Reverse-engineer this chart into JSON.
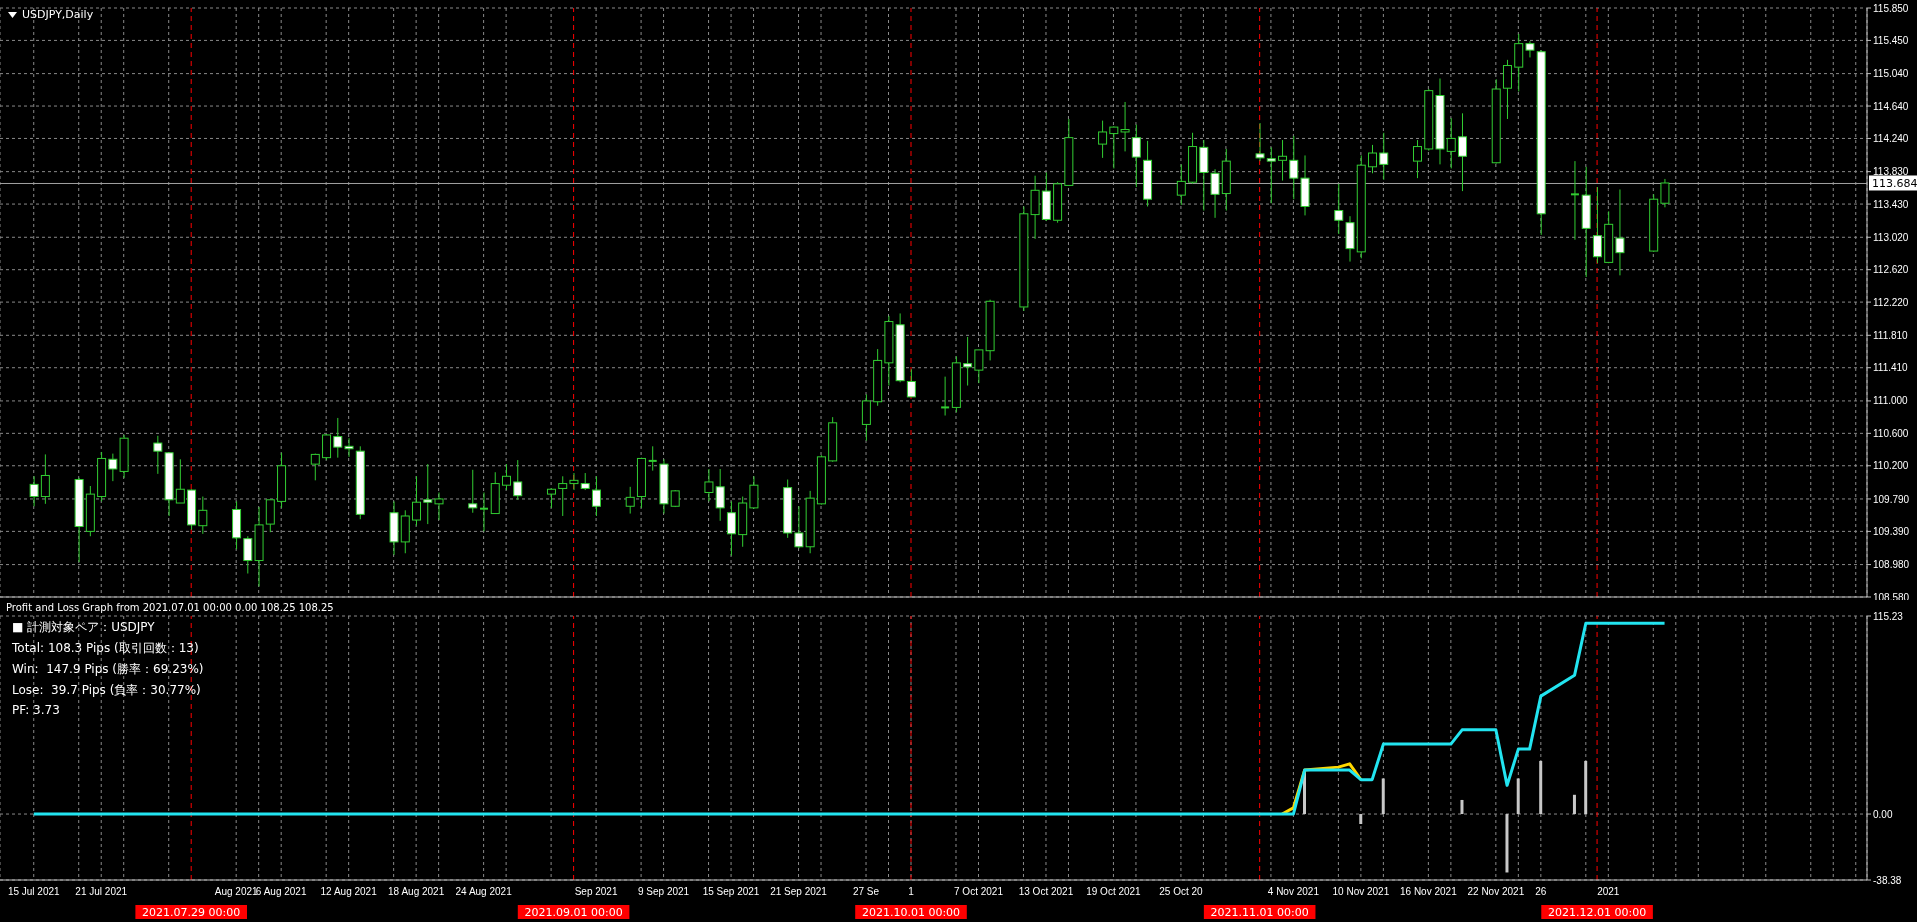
{
  "chart_data": [
    {
      "type": "candlestick",
      "title": "USDJPY,Daily",
      "color": "#32cd32",
      "x": [
        "2021-07-15",
        "2021-07-16",
        "2021-07-19",
        "2021-07-20",
        "2021-07-21",
        "2021-07-22",
        "2021-07-23",
        "2021-07-26",
        "2021-07-27",
        "2021-07-28",
        "2021-07-29",
        "2021-07-30",
        "2021-08-02",
        "2021-08-03",
        "2021-08-04",
        "2021-08-05",
        "2021-08-06",
        "2021-08-09",
        "2021-08-10",
        "2021-08-11",
        "2021-08-12",
        "2021-08-13",
        "2021-08-16",
        "2021-08-17",
        "2021-08-18",
        "2021-08-19",
        "2021-08-20",
        "2021-08-23",
        "2021-08-24",
        "2021-08-25",
        "2021-08-26",
        "2021-08-27",
        "2021-08-30",
        "2021-08-31",
        "2021-09-01",
        "2021-09-02",
        "2021-09-03",
        "2021-09-06",
        "2021-09-07",
        "2021-09-08",
        "2021-09-09",
        "2021-09-10",
        "2021-09-13",
        "2021-09-14",
        "2021-09-15",
        "2021-09-16",
        "2021-09-17",
        "2021-09-20",
        "2021-09-21",
        "2021-09-22",
        "2021-09-23",
        "2021-09-24",
        "2021-09-27",
        "2021-09-28",
        "2021-09-29",
        "2021-09-30",
        "2021-10-01",
        "2021-10-04",
        "2021-10-05",
        "2021-10-06",
        "2021-10-07",
        "2021-10-08",
        "2021-10-11",
        "2021-10-12",
        "2021-10-13",
        "2021-10-14",
        "2021-10-15",
        "2021-10-18",
        "2021-10-19",
        "2021-10-20",
        "2021-10-21",
        "2021-10-22",
        "2021-10-25",
        "2021-10-26",
        "2021-10-27",
        "2021-10-28",
        "2021-10-29",
        "2021-11-01",
        "2021-11-02",
        "2021-11-03",
        "2021-11-04",
        "2021-11-05",
        "2021-11-08",
        "2021-11-09",
        "2021-11-10",
        "2021-11-11",
        "2021-11-12",
        "2021-11-15",
        "2021-11-16",
        "2021-11-17",
        "2021-11-18",
        "2021-11-19",
        "2021-11-22",
        "2021-11-23",
        "2021-11-24",
        "2021-11-25",
        "2021-11-26",
        "2021-11-29",
        "2021-11-30",
        "2021-12-01",
        "2021-12-02",
        "2021-12-03",
        "2021-12-06",
        "2021-12-07"
      ],
      "ohlc": [
        [
          109.97,
          110.07,
          109.7,
          109.82
        ],
        [
          109.82,
          110.34,
          109.73,
          110.08
        ],
        [
          110.03,
          110.05,
          109.01,
          109.45
        ],
        [
          109.39,
          109.95,
          109.33,
          109.85
        ],
        [
          109.82,
          110.37,
          109.76,
          110.29
        ],
        [
          110.28,
          110.35,
          110.01,
          110.16
        ],
        [
          110.13,
          110.58,
          110.05,
          110.54
        ],
        [
          110.48,
          110.57,
          110.1,
          110.38
        ],
        [
          110.36,
          110.37,
          109.58,
          109.78
        ],
        [
          109.74,
          110.28,
          109.74,
          109.91
        ],
        [
          109.9,
          109.91,
          109.41,
          109.47
        ],
        [
          109.46,
          109.82,
          109.36,
          109.65
        ],
        [
          109.66,
          109.76,
          109.17,
          109.31
        ],
        [
          109.3,
          109.33,
          108.87,
          109.03
        ],
        [
          109.03,
          109.69,
          108.71,
          109.47
        ],
        [
          109.48,
          109.78,
          109.38,
          109.78
        ],
        [
          109.76,
          110.36,
          109.68,
          110.2
        ],
        [
          110.22,
          110.35,
          110.02,
          110.34
        ],
        [
          110.3,
          110.59,
          110.27,
          110.58
        ],
        [
          110.56,
          110.79,
          110.3,
          110.43
        ],
        [
          110.44,
          110.54,
          110.31,
          110.41
        ],
        [
          110.38,
          110.44,
          109.54,
          109.6
        ],
        [
          109.62,
          109.76,
          109.1,
          109.26
        ],
        [
          109.26,
          109.65,
          109.12,
          109.58
        ],
        [
          109.53,
          110.07,
          109.46,
          109.75
        ],
        [
          109.78,
          110.22,
          109.48,
          109.75
        ],
        [
          109.73,
          109.87,
          109.53,
          109.79
        ],
        [
          109.73,
          110.15,
          109.62,
          109.68
        ],
        [
          109.67,
          109.87,
          109.39,
          109.67
        ],
        [
          109.61,
          110.12,
          109.61,
          109.98
        ],
        [
          109.96,
          110.22,
          109.9,
          110.07
        ],
        [
          110.0,
          110.27,
          109.78,
          109.83
        ],
        [
          109.85,
          109.92,
          109.68,
          109.91
        ],
        [
          109.92,
          110.07,
          109.58,
          109.98
        ],
        [
          109.98,
          110.11,
          109.9,
          110.02
        ],
        [
          109.98,
          110.11,
          109.9,
          109.92
        ],
        [
          109.9,
          110.07,
          109.58,
          109.7
        ],
        [
          109.7,
          109.94,
          109.61,
          109.81
        ],
        [
          109.82,
          110.3,
          109.68,
          110.29
        ],
        [
          110.26,
          110.44,
          110.14,
          110.26
        ],
        [
          110.22,
          110.28,
          109.61,
          109.73
        ],
        [
          109.7,
          109.9,
          109.69,
          109.89
        ],
        [
          109.87,
          110.16,
          109.76,
          110.0
        ],
        [
          109.94,
          110.16,
          109.52,
          109.68
        ],
        [
          109.62,
          109.76,
          109.09,
          109.36
        ],
        [
          109.35,
          109.82,
          109.2,
          109.74
        ],
        [
          109.68,
          110.07,
          109.67,
          109.96
        ],
        [
          109.93,
          110.03,
          109.31,
          109.37
        ],
        [
          109.37,
          109.7,
          109.18,
          109.2
        ],
        [
          109.2,
          109.89,
          109.12,
          109.8
        ],
        [
          109.73,
          110.33,
          109.72,
          110.31
        ],
        [
          110.26,
          110.8,
          110.25,
          110.73
        ],
        [
          110.71,
          111.08,
          110.51,
          111.0
        ],
        [
          110.99,
          111.64,
          110.94,
          111.5
        ],
        [
          111.47,
          112.05,
          111.19,
          111.98
        ],
        [
          111.94,
          112.08,
          111.23,
          111.25
        ],
        [
          111.24,
          111.39,
          111.05,
          111.05
        ],
        [
          110.92,
          111.3,
          110.82,
          110.92
        ],
        [
          110.92,
          111.55,
          110.86,
          111.47
        ],
        [
          111.46,
          111.79,
          111.19,
          111.42
        ],
        [
          111.38,
          111.63,
          111.22,
          111.63
        ],
        [
          111.62,
          112.25,
          111.5,
          112.23
        ],
        [
          112.16,
          113.4,
          112.11,
          113.31
        ],
        [
          113.3,
          113.78,
          113.0,
          113.6
        ],
        [
          113.59,
          113.82,
          113.22,
          113.24
        ],
        [
          113.23,
          113.7,
          113.2,
          113.68
        ],
        [
          113.66,
          114.48,
          113.66,
          114.25
        ],
        [
          114.17,
          114.46,
          114.0,
          114.32
        ],
        [
          114.3,
          114.39,
          113.87,
          114.38
        ],
        [
          114.32,
          114.69,
          114.08,
          114.35
        ],
        [
          114.25,
          114.41,
          113.64,
          114.01
        ],
        [
          113.97,
          114.21,
          113.4,
          113.49
        ],
        [
          113.54,
          113.92,
          113.42,
          113.71
        ],
        [
          113.7,
          114.31,
          113.68,
          114.14
        ],
        [
          114.13,
          114.22,
          113.35,
          113.82
        ],
        [
          113.81,
          113.86,
          113.26,
          113.55
        ],
        [
          113.56,
          114.11,
          113.35,
          113.96
        ],
        [
          114.05,
          114.43,
          113.96,
          114.0
        ],
        [
          113.99,
          114.13,
          113.44,
          113.96
        ],
        [
          113.97,
          114.22,
          113.72,
          114.02
        ],
        [
          113.97,
          114.27,
          113.49,
          113.75
        ],
        [
          113.75,
          114.03,
          113.29,
          113.4
        ],
        [
          113.35,
          113.68,
          113.06,
          113.23
        ],
        [
          113.2,
          113.28,
          112.72,
          112.88
        ],
        [
          112.84,
          114.03,
          112.76,
          113.91
        ],
        [
          113.89,
          114.16,
          113.81,
          114.06
        ],
        [
          114.06,
          114.31,
          113.73,
          113.92
        ],
        [
          113.96,
          114.22,
          113.75,
          114.14
        ],
        [
          114.11,
          114.85,
          114.09,
          114.83
        ],
        [
          114.77,
          114.98,
          113.92,
          114.11
        ],
        [
          114.08,
          114.49,
          113.87,
          114.24
        ],
        [
          114.26,
          114.55,
          113.59,
          114.02
        ],
        [
          113.94,
          114.97,
          113.93,
          114.85
        ],
        [
          114.86,
          115.21,
          114.48,
          115.14
        ],
        [
          115.12,
          115.53,
          114.82,
          115.41
        ],
        [
          115.41,
          115.44,
          115.24,
          115.33
        ],
        [
          115.31,
          115.33,
          113.05,
          113.31
        ],
        [
          113.55,
          113.96,
          112.99,
          113.55
        ],
        [
          113.54,
          113.89,
          112.53,
          113.13
        ],
        [
          113.04,
          113.64,
          112.7,
          112.78
        ],
        [
          112.71,
          113.34,
          112.7,
          113.18
        ],
        [
          113.01,
          113.61,
          112.55,
          112.83
        ],
        [
          112.85,
          113.55,
          112.84,
          113.49
        ],
        [
          113.44,
          113.74,
          113.39,
          113.69
        ]
      ],
      "xlim": [
        "2021-07-12",
        "2021-12-25"
      ],
      "xticks": [
        "2021-07-15",
        "2021-07-19",
        "2021-07-21",
        "2021-07-23",
        "2021-07-27",
        "2021-08-02",
        "2021-08-04",
        "2021-08-06",
        "2021-08-10",
        "2021-08-12",
        "2021-08-16",
        "2021-08-18",
        "2021-08-20",
        "2021-08-24",
        "2021-08-26",
        "2021-08-30",
        "2021-09-03",
        "2021-09-07",
        "2021-09-09",
        "2021-09-13",
        "2021-09-15",
        "2021-09-17",
        "2021-09-21",
        "2021-09-23",
        "2021-09-27",
        "2021-09-29",
        "2021-10-05",
        "2021-10-07",
        "2021-10-11",
        "2021-10-13",
        "2021-10-15",
        "2021-10-19",
        "2021-10-21",
        "2021-10-25",
        "2021-10-27",
        "2021-10-29",
        "2021-11-02",
        "2021-11-04",
        "2021-11-08",
        "2021-11-10",
        "2021-11-12",
        "2021-11-16",
        "2021-11-18",
        "2021-11-22",
        "2021-11-24",
        "2021-11-26",
        "2021-11-30",
        "2021-12-02",
        "2021-12-06",
        "2021-12-08",
        "2021-12-10",
        "2021-12-14",
        "2021-12-16",
        "2021-12-20",
        "2021-12-22",
        "2021-12-24"
      ],
      "ylim": [
        108.58,
        115.85
      ],
      "yticks": [
        {
          "value": 108.58,
          "label": "108.580"
        },
        {
          "value": 108.98,
          "label": "108.980"
        },
        {
          "value": 109.39,
          "label": "109.390"
        },
        {
          "value": 109.79,
          "label": "109.790"
        },
        {
          "value": 110.2,
          "label": "110.200"
        },
        {
          "value": 110.6,
          "label": "110.600"
        },
        {
          "value": 111,
          "label": "111.000"
        },
        {
          "value": 111.41,
          "label": "111.410"
        },
        {
          "value": 111.81,
          "label": "111.810"
        },
        {
          "value": 112.22,
          "label": "112.220"
        },
        {
          "value": 112.62,
          "label": "112.620"
        },
        {
          "value": 113.02,
          "label": "113.020"
        },
        {
          "value": 113.43,
          "label": "113.430"
        },
        {
          "value": 113.83,
          "label": "113.830"
        },
        {
          "value": 114.24,
          "label": "114.240"
        },
        {
          "value": 114.64,
          "label": "114.640"
        },
        {
          "value": 115.04,
          "label": "115.040"
        },
        {
          "value": 115.45,
          "label": "115.450"
        },
        {
          "value": 115.85,
          "label": "115.850"
        }
      ],
      "grid": true,
      "tick_labels": "y",
      "ref_lines": [
        {
          "axis": "x",
          "value": "2021-07-29",
          "color": "#ff0000",
          "line_style": "dashed"
        },
        {
          "axis": "x",
          "value": "2021-09-01",
          "color": "#ff0000",
          "line_style": "dashed"
        },
        {
          "axis": "x",
          "value": "2021-10-01",
          "color": "#ff0000",
          "line_style": "dashed"
        },
        {
          "axis": "x",
          "value": "2021-11-01",
          "color": "#ff0000",
          "line_style": "dashed"
        },
        {
          "axis": "x",
          "value": "2021-12-01",
          "color": "#ff0000",
          "line_style": "dashed"
        },
        {
          "axis": "y",
          "value": 113.684,
          "label": "113.684",
          "color": "#a0a0a0",
          "line_style": "solid"
        }
      ]
    },
    {
      "type": "line",
      "title": "Profit and Loss Graph from 2021.07.01 00:00 0.00 108.25 108.25",
      "annotations": [
        "■ 計測対象ペア：USDJPY",
        "Total: 108.3 Pips (取引回数：13)",
        "Win:  147.9 Pips (勝率：69.23%)",
        "Lose:  39.7 Pips (負率：30.77%)",
        "PF: 3.73"
      ],
      "series": [
        {
          "type": "bar",
          "color": "#c8c8c8",
          "x": [
            "2021-11-05",
            "2021-11-10",
            "2021-11-12",
            "2021-11-19",
            "2021-11-23",
            "2021-11-24",
            "2021-11-26",
            "2021-11-29",
            "2021-11-30"
          ],
          "values": [
            25.6,
            -5.8,
            20.7,
            8.2,
            -34.0,
            20.7,
            30.9,
            11.2,
            30.9
          ]
        },
        {
          "type": "line",
          "color": "#ffd700",
          "x": [
            "2021-11-03",
            "2021-11-04",
            "2021-11-05",
            "2021-11-08",
            "2021-11-09",
            "2021-11-10"
          ],
          "values": [
            0,
            3.6,
            25.6,
            27.3,
            29.2,
            20.0
          ]
        },
        {
          "type": "line",
          "color": "#22e4f0",
          "x": [
            "2021-07-15",
            "2021-11-04",
            "2021-11-05",
            "2021-11-08",
            "2021-11-09",
            "2021-11-10",
            "2021-11-11",
            "2021-11-12",
            "2021-11-18",
            "2021-11-19",
            "2021-11-22",
            "2021-11-23",
            "2021-11-24",
            "2021-11-25",
            "2021-11-26",
            "2021-11-29",
            "2021-11-30",
            "2021-12-07"
          ],
          "values": [
            0,
            0,
            25.6,
            25.6,
            25.6,
            20.0,
            20.0,
            40.7,
            40.7,
            49.0,
            49.0,
            16.7,
            37.8,
            37.8,
            68.6,
            80.8,
            111.0,
            111.0
          ]
        }
      ],
      "xlim": [
        "2021-07-12",
        "2021-12-25"
      ],
      "xticks": [
        {
          "value": "2021-07-15",
          "label": "15 Jul 2021"
        },
        {
          "value": "2021-07-19",
          "label": null
        },
        {
          "value": "2021-07-21",
          "label": "21 Jul 2021"
        },
        {
          "value": "2021-07-23",
          "label": null
        },
        {
          "value": "2021-07-27",
          "label": null
        },
        {
          "value": "2021-08-02",
          "label": "Aug 2021"
        },
        {
          "value": "2021-08-04",
          "label": null
        },
        {
          "value": "2021-08-06",
          "label": "6 Aug 2021"
        },
        {
          "value": "2021-08-10",
          "label": null
        },
        {
          "value": "2021-08-12",
          "label": "12 Aug 2021"
        },
        {
          "value": "2021-08-16",
          "label": null
        },
        {
          "value": "2021-08-18",
          "label": "18 Aug 2021"
        },
        {
          "value": "2021-08-20",
          "label": null
        },
        {
          "value": "2021-08-24",
          "label": "24 Aug 2021"
        },
        {
          "value": "2021-08-26",
          "label": null
        },
        {
          "value": "2021-08-30",
          "label": null
        },
        {
          "value": "2021-09-03",
          "label": "Sep 2021"
        },
        {
          "value": "2021-09-07",
          "label": null
        },
        {
          "value": "2021-09-09",
          "label": "9 Sep 2021"
        },
        {
          "value": "2021-09-13",
          "label": null
        },
        {
          "value": "2021-09-15",
          "label": "15 Sep 2021"
        },
        {
          "value": "2021-09-17",
          "label": null
        },
        {
          "value": "2021-09-21",
          "label": "21 Sep 2021"
        },
        {
          "value": "2021-09-23",
          "label": null
        },
        {
          "value": "2021-09-27",
          "label": "27 Se"
        },
        {
          "value": "2021-09-29",
          "label": null
        },
        {
          "value": "2021-10-01",
          "label": "1"
        },
        {
          "value": "2021-10-05",
          "label": null
        },
        {
          "value": "2021-10-07",
          "label": "7 Oct 2021"
        },
        {
          "value": "2021-10-11",
          "label": null
        },
        {
          "value": "2021-10-13",
          "label": "13 Oct 2021"
        },
        {
          "value": "2021-10-15",
          "label": null
        },
        {
          "value": "2021-10-19",
          "label": "19 Oct 2021"
        },
        {
          "value": "2021-10-21",
          "label": null
        },
        {
          "value": "2021-10-25",
          "label": "25 Oct 20"
        },
        {
          "value": "2021-10-27",
          "label": null
        },
        {
          "value": "2021-10-29",
          "label": null
        },
        {
          "value": "2021-11-02",
          "label": null
        },
        {
          "value": "2021-11-04",
          "label": "4 Nov 2021"
        },
        {
          "value": "2021-11-08",
          "label": null
        },
        {
          "value": "2021-11-10",
          "label": "10 Nov 2021"
        },
        {
          "value": "2021-11-12",
          "label": null
        },
        {
          "value": "2021-11-16",
          "label": "16 Nov 2021"
        },
        {
          "value": "2021-11-18",
          "label": null
        },
        {
          "value": "2021-11-22",
          "label": "22 Nov 2021"
        },
        {
          "value": "2021-11-24",
          "label": null
        },
        {
          "value": "2021-11-26",
          "label": "26"
        },
        {
          "value": "2021-11-30",
          "label": null
        },
        {
          "value": "2021-12-02",
          "label": "2021"
        },
        {
          "value": "2021-12-06",
          "label": null
        },
        {
          "value": "2021-12-08",
          "label": null
        },
        {
          "value": "2021-12-10",
          "label": null
        },
        {
          "value": "2021-12-14",
          "label": null
        },
        {
          "value": "2021-12-16",
          "label": null
        },
        {
          "value": "2021-12-20",
          "label": null
        },
        {
          "value": "2021-12-22",
          "label": null
        },
        {
          "value": "2021-12-24",
          "label": null
        }
      ],
      "ylim": [
        -38.38,
        115.23
      ],
      "yticks": [
        -38.38,
        {
          "value": 0,
          "label": "0.00"
        },
        115.23
      ],
      "grid": true,
      "marker": "none",
      "ref_lines": [
        {
          "axis": "x",
          "value": "2021-07-29",
          "label": "2021.07.29 00:00",
          "color": "#ff0000",
          "line_style": "dashed"
        },
        {
          "axis": "x",
          "value": "2021-09-01",
          "label": "2021.09.01 00:00",
          "color": "#ff0000",
          "line_style": "dashed"
        },
        {
          "axis": "x",
          "value": "2021-10-01",
          "label": "2021.10.01 00:00",
          "color": "#ff0000",
          "line_style": "dashed"
        },
        {
          "axis": "x",
          "value": "2021-11-01",
          "label": "2021.11.01 00:00",
          "color": "#ff0000",
          "line_style": "dashed"
        },
        {
          "axis": "x",
          "value": "2021-12-01",
          "label": "2021.12.01 00:00",
          "color": "#ff0000",
          "line_style": "dashed"
        }
      ]
    }
  ]
}
